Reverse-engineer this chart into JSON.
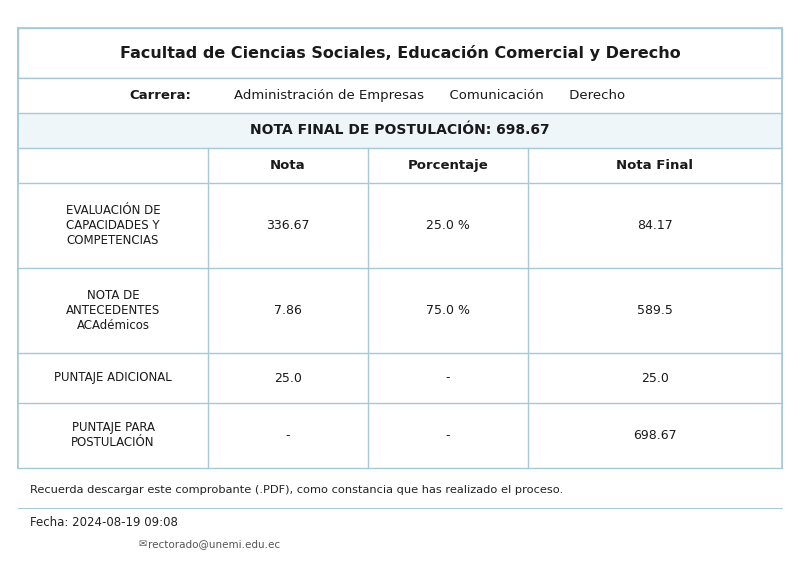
{
  "title": "Facultad de Ciencias Sociales, Educación Comercial y Derecho",
  "carrera_label": "Carrera:",
  "carreras": "Administración de Empresas      Comunicación      Derecho",
  "nota_final_label": "NOTA FINAL DE POSTULACIÓN: 698.67",
  "col_headers": [
    "",
    "Nota",
    "Porcentaje",
    "Nota Final"
  ],
  "rows": [
    {
      "label": "EVALUACIÓN DE\nCAPACIDADES Y\nCOMPETENCIAS",
      "nota": "336.67",
      "porcentaje": "25.0 %",
      "nota_final": "84.17"
    },
    {
      "label": "NOTA DE\nANTECEDENTES\nACAdémicos",
      "nota": "7.86",
      "porcentaje": "75.0 %",
      "nota_final": "589.5"
    },
    {
      "label": "PUNTAJE ADICIONAL",
      "nota": "25.0",
      "porcentaje": "-",
      "nota_final": "25.0"
    },
    {
      "label": "PUNTAJE PARA\nPOSTULACIÓN",
      "nota": "-",
      "porcentaje": "-",
      "nota_final": "698.67"
    }
  ],
  "footer_note": "Recuerda descargar este comprobante (.PDF), como constancia que has realizado el proceso.",
  "fecha": "Fecha: 2024-08-19 09:08",
  "email": "rectorado@unemi.edu.ec",
  "bg_color": "#ffffff",
  "nota_final_bg": "#eef6f9",
  "border_color": "#a8c8d8",
  "text_color": "#1a1a1a",
  "row2_label": "NOTA DE\nANTECEDENTES\nACAdémicos"
}
